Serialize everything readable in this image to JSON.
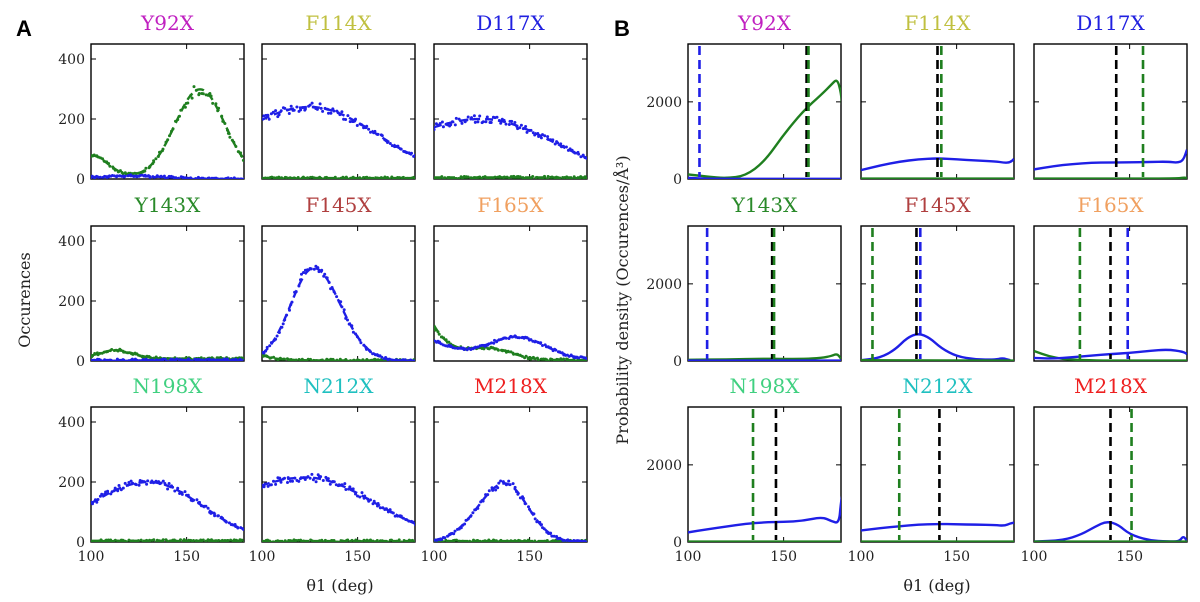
{
  "figure": {
    "panel_a_letter": "A",
    "panel_b_letter": "B"
  },
  "colors": {
    "blue": "#1f1fe6",
    "green": "#1f7f1f",
    "black": "#000000"
  },
  "chart_data": [
    {
      "panel": "A",
      "type": "scatter",
      "xlabel": "θ1 (deg)",
      "ylabel": "Occurences",
      "xlim": [
        100,
        180
      ],
      "ylim": [
        0,
        450
      ],
      "xticks": [
        100,
        150
      ],
      "yticks": [
        0,
        200,
        400
      ],
      "subplots": [
        {
          "title": "Y92X",
          "title_color": "#c020c0",
          "blue": {
            "type": "bump",
            "peak": 10,
            "mu": 120,
            "left": 20,
            "right": 20
          },
          "green": {
            "type": "y92"
          }
        },
        {
          "title": "F114X",
          "title_color": "#c0c040",
          "blue": {
            "type": "bump",
            "peak": 240,
            "mu": 125,
            "left": 40,
            "right": 36
          },
          "green": {
            "type": "flat",
            "level": 3
          }
        },
        {
          "title": "D117X",
          "title_color": "#2020e0",
          "blue": {
            "type": "bump",
            "peak": 200,
            "mu": 125,
            "left": 46,
            "right": 38
          },
          "green": {
            "type": "flat",
            "level": 5
          }
        },
        {
          "title": "Y143X",
          "title_color": "#2a8a2a",
          "blue": {
            "type": "flat",
            "level": 3
          },
          "green": {
            "type": "y143"
          }
        },
        {
          "title": "F145X",
          "title_color": "#b04040",
          "blue": {
            "type": "bump",
            "peak": 310,
            "mu": 127,
            "left": 12,
            "right": 14
          },
          "green": {
            "type": "decay",
            "start": 20,
            "scale": 6
          }
        },
        {
          "title": "F165X",
          "title_color": "#f0a060",
          "blue": {
            "type": "f165b"
          },
          "green": {
            "type": "f165g"
          }
        },
        {
          "title": "N198X",
          "title_color": "#40d080",
          "blue": {
            "type": "bump",
            "peak": 200,
            "mu": 130,
            "left": 32,
            "right": 28
          },
          "green": {
            "type": "flat",
            "level": 4
          }
        },
        {
          "title": "N212X",
          "title_color": "#20c0c0",
          "blue": {
            "type": "bump",
            "peak": 215,
            "mu": 123,
            "left": 45,
            "right": 36
          },
          "green": {
            "type": "flat",
            "level": 3
          }
        },
        {
          "title": "M218X",
          "title_color": "#ee2020",
          "blue": {
            "type": "bump",
            "peak": 195,
            "mu": 137,
            "left": 14,
            "right": 12
          },
          "green": {
            "type": "flat",
            "level": 3
          }
        }
      ]
    },
    {
      "panel": "B",
      "type": "line",
      "xlabel": "θ1 (deg)",
      "ylabel": "Probability density (Occurences/Å³)",
      "xlim": [
        100,
        180
      ],
      "ylim": [
        0,
        3500
      ],
      "xticks": [
        100,
        150
      ],
      "yticks": [
        0,
        2000
      ],
      "subplots": [
        {
          "title": "Y92X",
          "title_color": "#c020c0",
          "curves": [
            {
              "color": "green",
              "points": [
                [
                  100,
                  120
                ],
                [
                  110,
                  60
                ],
                [
                  120,
                  20
                ],
                [
                  130,
                  80
                ],
                [
                  140,
                  450
                ],
                [
                  150,
                  1150
                ],
                [
                  160,
                  1750
                ],
                [
                  170,
                  2200
                ],
                [
                  175,
                  2450
                ],
                [
                  178,
                  2600
                ],
                [
                  180,
                  2250
                ],
                [
                  181,
                  1700
                ],
                [
                  182,
                  1200
                ]
              ]
            },
            {
              "color": "blue",
              "points": [
                [
                  100,
                  30
                ],
                [
                  110,
                  5
                ],
                [
                  182,
                  5
                ]
              ]
            }
          ],
          "vlines": [
            {
              "x": 106,
              "color": "blue"
            },
            {
              "x": 162,
              "color": "black"
            },
            {
              "x": 163,
              "color": "green"
            }
          ]
        },
        {
          "title": "F114X",
          "title_color": "#c0c040",
          "curves": [
            {
              "color": "blue",
              "points": [
                [
                  100,
                  230
                ],
                [
                  110,
                  350
                ],
                [
                  120,
                  450
                ],
                [
                  130,
                  510
                ],
                [
                  140,
                  540
                ],
                [
                  150,
                  510
                ],
                [
                  160,
                  480
                ],
                [
                  170,
                  460
                ],
                [
                  175,
                  420
                ],
                [
                  178,
                  430
                ],
                [
                  180,
                  520
                ]
              ]
            },
            {
              "color": "green",
              "points": [
                [
                  100,
                  10
                ],
                [
                  180,
                  10
                ]
              ]
            }
          ],
          "vlines": [
            {
              "x": 140,
              "color": "black"
            },
            {
              "x": 142,
              "color": "green"
            }
          ]
        },
        {
          "title": "D117X",
          "title_color": "#2020e0",
          "curves": [
            {
              "color": "blue",
              "points": [
                [
                  100,
                  250
                ],
                [
                  110,
                  330
                ],
                [
                  120,
                  390
                ],
                [
                  130,
                  420
                ],
                [
                  140,
                  430
                ],
                [
                  150,
                  430
                ],
                [
                  160,
                  440
                ],
                [
                  170,
                  450
                ],
                [
                  175,
                  420
                ],
                [
                  178,
                  480
                ],
                [
                  180,
                  760
                ]
              ]
            },
            {
              "color": "green",
              "points": [
                [
                  100,
                  10
                ],
                [
                  175,
                  10
                ],
                [
                  178,
                  40
                ],
                [
                  180,
                  30
                ]
              ]
            }
          ],
          "vlines": [
            {
              "x": 143,
              "color": "black"
            },
            {
              "x": 157,
              "color": "green"
            }
          ]
        },
        {
          "title": "Y143X",
          "title_color": "#2a8a2a",
          "curves": [
            {
              "color": "green",
              "points": [
                [
                  100,
                  30
                ],
                [
                  120,
                  40
                ],
                [
                  140,
                  60
                ],
                [
                  160,
                  50
                ],
                [
                  170,
                  80
                ],
                [
                  175,
                  130
                ],
                [
                  178,
                  190
                ],
                [
                  180,
                  60
                ]
              ]
            },
            {
              "color": "blue",
              "points": [
                [
                  100,
                  10
                ],
                [
                  180,
                  10
                ]
              ]
            }
          ],
          "vlines": [
            {
              "x": 110,
              "color": "blue"
            },
            {
              "x": 144,
              "color": "black"
            },
            {
              "x": 145,
              "color": "green"
            }
          ]
        },
        {
          "title": "F145X",
          "title_color": "#b04040",
          "curves": [
            {
              "color": "blue",
              "points": [
                [
                  100,
                  20
                ],
                [
                  110,
                  80
                ],
                [
                  118,
                  300
                ],
                [
                  124,
                  600
                ],
                [
                  130,
                  720
                ],
                [
                  136,
                  600
                ],
                [
                  142,
                  330
                ],
                [
                  150,
                  120
                ],
                [
                  160,
                  40
                ],
                [
                  170,
                  30
                ],
                [
                  174,
                  80
                ],
                [
                  178,
                  20
                ]
              ]
            },
            {
              "color": "green",
              "points": [
                [
                  100,
                  20
                ],
                [
                  180,
                  10
                ]
              ]
            }
          ],
          "vlines": [
            {
              "x": 106,
              "color": "green"
            },
            {
              "x": 129,
              "color": "black"
            },
            {
              "x": 131,
              "color": "blue"
            }
          ]
        },
        {
          "title": "F165X",
          "title_color": "#f0a060",
          "curves": [
            {
              "color": "green",
              "points": [
                [
                  100,
                  260
                ],
                [
                  108,
                  120
                ],
                [
                  115,
                  50
                ],
                [
                  125,
                  20
                ],
                [
                  140,
                  10
                ],
                [
                  160,
                  10
                ],
                [
                  180,
                  10
                ]
              ]
            },
            {
              "color": "blue",
              "points": [
                [
                  100,
                  80
                ],
                [
                  110,
                  60
                ],
                [
                  120,
                  100
                ],
                [
                  130,
                  140
                ],
                [
                  140,
                  180
                ],
                [
                  150,
                  210
                ],
                [
                  160,
                  260
                ],
                [
                  170,
                  300
                ],
                [
                  178,
                  240
                ],
                [
                  180,
                  180
                ]
              ]
            }
          ],
          "vlines": [
            {
              "x": 124,
              "color": "green"
            },
            {
              "x": 140,
              "color": "black"
            },
            {
              "x": 149,
              "color": "blue"
            }
          ]
        },
        {
          "title": "N198X",
          "title_color": "#40d080",
          "curves": [
            {
              "color": "blue",
              "points": [
                [
                  100,
                  250
                ],
                [
                  110,
                  330
                ],
                [
                  120,
                  400
                ],
                [
                  130,
                  470
                ],
                [
                  140,
                  510
                ],
                [
                  150,
                  520
                ],
                [
                  160,
                  550
                ],
                [
                  170,
                  650
                ],
                [
                  175,
                  540
                ],
                [
                  179,
                  480
                ],
                [
                  180,
                  1050
                ],
                [
                  181,
                  1300
                ]
              ]
            },
            {
              "color": "green",
              "points": [
                [
                  100,
                  10
                ],
                [
                  180,
                  10
                ]
              ]
            }
          ],
          "vlines": [
            {
              "x": 134,
              "color": "green"
            },
            {
              "x": 146,
              "color": "black"
            }
          ]
        },
        {
          "title": "N212X",
          "title_color": "#20c0c0",
          "curves": [
            {
              "color": "blue",
              "points": [
                [
                  100,
                  300
                ],
                [
                  110,
                  360
                ],
                [
                  120,
                  410
                ],
                [
                  130,
                  450
                ],
                [
                  140,
                  470
                ],
                [
                  150,
                  460
                ],
                [
                  160,
                  450
                ],
                [
                  170,
                  440
                ],
                [
                  175,
                  420
                ],
                [
                  178,
                  480
                ],
                [
                  180,
                  500
                ]
              ]
            },
            {
              "color": "green",
              "points": [
                [
                  100,
                  10
                ],
                [
                  180,
                  10
                ]
              ]
            }
          ],
          "vlines": [
            {
              "x": 120,
              "color": "green"
            },
            {
              "x": 141,
              "color": "black"
            }
          ]
        },
        {
          "title": "M218X",
          "title_color": "#ee2020",
          "curves": [
            {
              "color": "blue",
              "points": [
                [
                  100,
                  10
                ],
                [
                  115,
                  40
                ],
                [
                  125,
                  200
                ],
                [
                  132,
                  400
                ],
                [
                  138,
                  540
                ],
                [
                  144,
                  450
                ],
                [
                  150,
                  200
                ],
                [
                  160,
                  40
                ],
                [
                  170,
                  15
                ],
                [
                  176,
                  10
                ],
                [
                  178,
                  160
                ],
                [
                  180,
                  30
                ]
              ]
            },
            {
              "color": "green",
              "points": [
                [
                  100,
                  10
                ],
                [
                  180,
                  10
                ]
              ]
            }
          ],
          "vlines": [
            {
              "x": 140,
              "color": "black"
            },
            {
              "x": 151,
              "color": "green"
            }
          ]
        }
      ]
    }
  ]
}
